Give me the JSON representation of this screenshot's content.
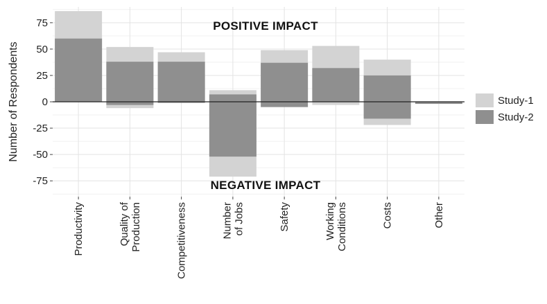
{
  "chart_data": {
    "type": "bar",
    "title": "",
    "xlabel": "",
    "ylabel": "Number of Respondents",
    "ylim": [
      -90,
      90
    ],
    "yticks": [
      75,
      50,
      25,
      0,
      -25,
      -50,
      -75
    ],
    "grid": true,
    "legend_position": "right",
    "annotations": {
      "top": "POSITIVE IMPACT",
      "bottom": "NEGATIVE IMPACT"
    },
    "categories": [
      {
        "lines": [
          "Productivity"
        ]
      },
      {
        "lines": [
          "Quality of",
          "Production"
        ]
      },
      {
        "lines": [
          "Competitiveness"
        ]
      },
      {
        "lines": [
          "Number",
          "of Jobs"
        ]
      },
      {
        "lines": [
          "Safety"
        ]
      },
      {
        "lines": [
          "Working",
          "Conditions"
        ]
      },
      {
        "lines": [
          "Costs"
        ]
      },
      {
        "lines": [
          "Other"
        ]
      }
    ],
    "series": [
      {
        "name": "Study-1",
        "color": "#d3d3d3",
        "positive": [
          86,
          52,
          47,
          11,
          49,
          53,
          40,
          0
        ],
        "negative": [
          0,
          -6,
          0,
          -71,
          0,
          -3,
          -22,
          0
        ]
      },
      {
        "name": "Study-2",
        "color": "#8f8f8f",
        "positive": [
          60,
          38,
          38,
          7,
          37,
          32,
          25,
          0
        ],
        "negative": [
          0,
          -3,
          -1,
          -52,
          -5,
          0,
          -16,
          -2
        ]
      }
    ]
  }
}
